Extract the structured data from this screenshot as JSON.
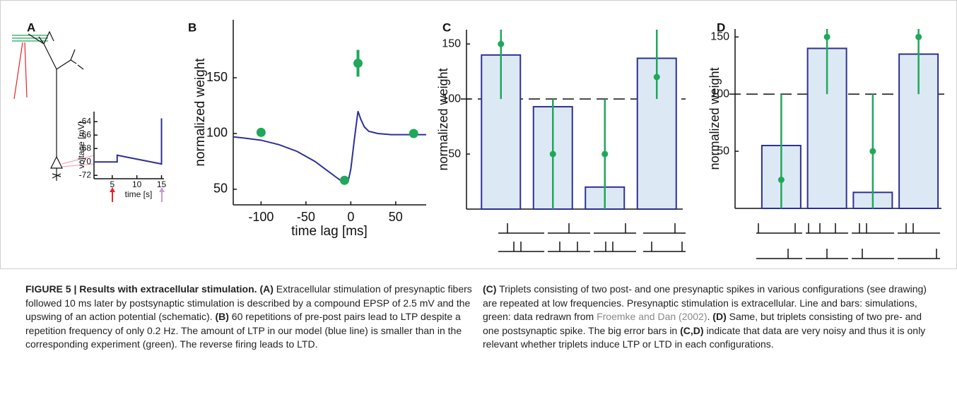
{
  "panel_labels": [
    "A",
    "B",
    "C",
    "D"
  ],
  "chart_data": [
    {
      "type": "line",
      "xlabel": "time [s]",
      "ylabel": "voltage [mV]",
      "x": [
        1.3,
        6,
        6,
        15,
        15
      ],
      "series": [
        {
          "color": "#2e3192",
          "values": [
            -70,
            -70,
            -69,
            -70.3,
            -63.5
          ]
        }
      ],
      "xlim": [
        1.3,
        15.5
      ],
      "ylim": [
        -72.5,
        -62.5
      ],
      "xticks": [
        5,
        10,
        15
      ],
      "yticks": [
        -72,
        -70,
        -68,
        -66,
        -64
      ]
    },
    {
      "type": "line",
      "xlabel": "time lag [ms]",
      "ylabel": "normalized weight",
      "x": [
        -131,
        -120,
        -100,
        -80,
        -60,
        -40,
        -25,
        -15,
        -8,
        -3,
        0,
        4,
        8,
        11,
        15,
        20,
        30,
        45,
        60,
        84
      ],
      "series": [
        {
          "color": "#2e3192",
          "values": [
            97,
            96,
            94,
            90,
            84,
            75,
            66,
            60,
            56,
            57,
            68,
            95,
            120,
            113,
            106,
            102,
            100,
            99,
            99,
            99
          ]
        }
      ],
      "points": {
        "color": "#1fa85a",
        "x": [
          -100,
          -7,
          8,
          70
        ],
        "values": [
          101,
          58,
          163,
          100
        ],
        "errors": [
          0,
          3,
          12,
          0
        ]
      },
      "xlim": [
        -131,
        84
      ],
      "ylim": [
        36,
        202
      ],
      "xticks": [
        -100,
        -50,
        0,
        50
      ],
      "yticks": [
        50,
        100,
        150
      ]
    },
    {
      "type": "bar",
      "ylabel": "normalized weight",
      "values": [
        140,
        93,
        20,
        137
      ],
      "color": "#dce9f5",
      "edgecolor": "#2e3192",
      "points": {
        "color": "#1fa85a",
        "values": [
          150,
          50,
          50,
          120
        ],
        "low": [
          100,
          0,
          0,
          100
        ],
        "high": [
          170,
          100,
          100,
          170
        ]
      },
      "hline": 100,
      "ylim": [
        0,
        163
      ],
      "yticks": [
        50,
        100,
        150
      ]
    },
    {
      "type": "bar",
      "ylabel": "normalized weight",
      "values": [
        55,
        140,
        14,
        135
      ],
      "color": "#dce9f5",
      "edgecolor": "#2e3192",
      "points": {
        "color": "#1fa85a",
        "values": [
          25,
          150,
          50,
          150
        ],
        "low": [
          0,
          100,
          0,
          100
        ],
        "high": [
          100,
          165,
          100,
          165
        ]
      },
      "hline": 100,
      "ylim": [
        0,
        157
      ],
      "yticks": [
        50,
        100,
        150
      ]
    }
  ],
  "caption": {
    "left": [
      {
        "text": "FIGURE 5 | Results with extracellular stimulation.",
        "bold": true
      },
      {
        "text": " "
      },
      {
        "text": "(A)",
        "bold": true
      },
      {
        "text": " Extracellular stimulation of presynaptic fibers followed 10 ms later by postsynaptic stimulation is described by a compound EPSP of 2.5 mV and the upswing of an action potential (schematic). "
      },
      {
        "text": "(B)",
        "bold": true
      },
      {
        "text": " 60 repetitions of pre-post pairs lead to LTP despite a repetition frequency of only 0.2 Hz. The amount of LTP in our model (blue line) is smaller than in the corresponding experiment (green). The reverse firing leads to LTD."
      }
    ],
    "right": [
      {
        "text": "(C)",
        "bold": true
      },
      {
        "text": " Triplets consisting of two post- and one presynaptic spikes in various configurations (see drawing) are repeated at low frequencies. Presynaptic stimulation is extracellular. Line and bars: simulations, green: data redrawn from "
      },
      {
        "text": "Froemke and Dan (2002)",
        "link": true
      },
      {
        "text": ". "
      },
      {
        "text": "(D)",
        "bold": true
      },
      {
        "text": " Same, but triplets consisting of two pre- and one postsynaptic spike. The big error bars in "
      },
      {
        "text": "(C,D)",
        "bold": true
      },
      {
        "text": " indicate that data are very noisy and thus it is only relevant whether triplets induce LTP or LTD in each configurations."
      }
    ]
  }
}
